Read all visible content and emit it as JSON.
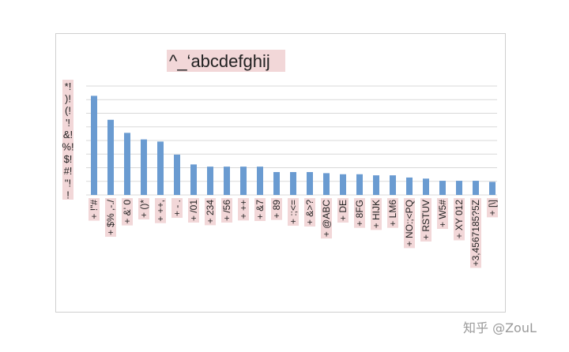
{
  "chart_data": {
    "type": "bar",
    "title": "^_‘abcdefghij",
    "y_axis_chars": [
      "*!",
      ")!",
      "(!",
      "'!",
      "&!",
      "%!",
      "$!",
      "#!",
      "\"!",
      "!"
    ],
    "categories": [
      "+ !\"#",
      "+ $%  ,-./",
      "+ &'   0",
      "+ ()*",
      "+ ++,",
      "+  - .",
      "+ /01",
      "+ 234",
      "+ /56",
      "+ ++",
      "+ &7",
      "+ 89",
      "+ :;<=",
      "+ &>?",
      "+ @ABC",
      "+ DE",
      "+ 8FG",
      "+ HIJK",
      "+ LM6",
      "+ NO:;<PQ",
      "+ RSTUV",
      "+ W5#",
      "+ XY   012",
      "+3,4567185?5Z",
      "+ [\\]"
    ],
    "values": [
      9.1,
      6.9,
      5.7,
      5.1,
      4.9,
      3.7,
      2.8,
      2.6,
      2.6,
      2.6,
      2.6,
      2.1,
      2.1,
      2.1,
      2.0,
      1.9,
      1.9,
      1.8,
      1.8,
      1.6,
      1.5,
      1.3,
      1.3,
      1.3,
      1.2
    ],
    "ylim": [
      0,
      10
    ],
    "grid": true,
    "color": "#6a9bd1"
  },
  "watermark": "知乎 @ZouL"
}
